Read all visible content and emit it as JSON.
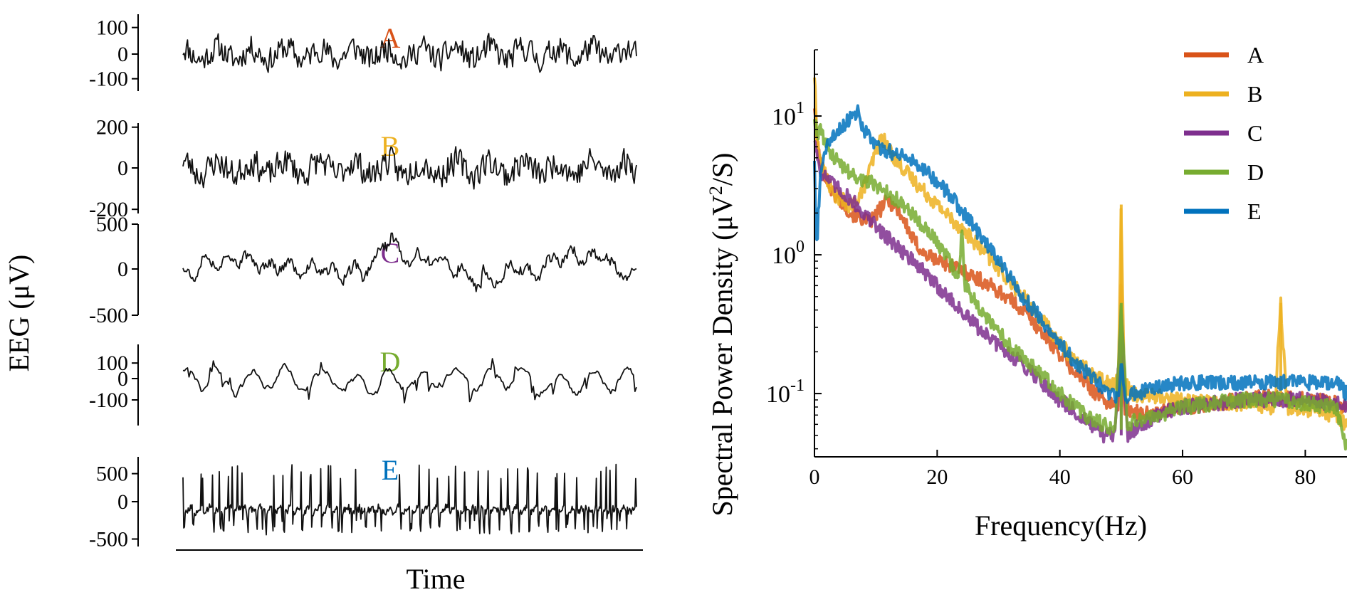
{
  "chart_data": [
    {
      "type": "line",
      "title": "",
      "xlabel": "Time",
      "ylabel": "EEG (μV)",
      "xlim": [
        0,
        4000
      ],
      "panels": [
        {
          "label": "A",
          "color": "#D95319",
          "ylim": [
            -150,
            150
          ],
          "yticks": [
            100,
            0,
            -100
          ],
          "yticklabels": [
            "100",
            "0",
            "-100"
          ],
          "seed": 11,
          "kind": "noise",
          "amp": 70,
          "n": 400
        },
        {
          "label": "B",
          "color": "#EDB120",
          "ylim": [
            -220,
            220
          ],
          "yticks": [
            200,
            0,
            -200
          ],
          "yticklabels": [
            "200",
            "0",
            "-200"
          ],
          "seed": 23,
          "kind": "noise",
          "amp": 95,
          "n": 400
        },
        {
          "label": "C",
          "color": "#7E2F8E",
          "ylim": [
            -500,
            500
          ],
          "yticks": [
            500,
            0,
            -500
          ],
          "yticklabels": [
            "500",
            "0",
            "-500"
          ],
          "seed": 37,
          "kind": "drift",
          "amp": 180,
          "n": 380
        },
        {
          "label": "D",
          "color": "#77AC30",
          "ylim": [
            -220,
            220
          ],
          "yticks": [
            100,
            0,
            -100
          ],
          "yticklabels": [
            "100",
            "0",
            "-100"
          ],
          "seed": 41,
          "kind": "slow",
          "amp": 110,
          "n": 300
        },
        {
          "label": "E",
          "color": "#0072BD",
          "ylim": [
            -600,
            800
          ],
          "yticks": [
            500,
            0,
            -500
          ],
          "yticklabels": [
            "500",
            "0",
            "-500"
          ],
          "seed": 53,
          "kind": "spike",
          "amp": 450,
          "n": 600
        }
      ]
    },
    {
      "type": "line",
      "title": "",
      "xlabel": "Frequency(Hz)",
      "ylabel": "Spectral Power Density (μV²/S)",
      "ylabel_main": "Spectral Power Density (μV",
      "ylabel_sup": "2",
      "ylabel_end": "/S)",
      "yscale": "log",
      "xlim": [
        0,
        86.8
      ],
      "ylim": [
        0.035,
        30
      ],
      "xticks": [
        0,
        20,
        40,
        60,
        80
      ],
      "xticklabels": [
        "0",
        "20",
        "40",
        "60",
        "80"
      ],
      "yticks": [
        10,
        1,
        0.1
      ],
      "yticklabels": [
        {
          "base": "10",
          "exp": "1"
        },
        {
          "base": "10",
          "exp": "0"
        },
        {
          "base": "10",
          "exp": "-1"
        }
      ],
      "legend_position": "top-right",
      "series": [
        {
          "name": "A",
          "color": "#D95319",
          "x": [
            0,
            0.5,
            1,
            3,
            6,
            9,
            12,
            14,
            16,
            18,
            22,
            26,
            30,
            34,
            38,
            42,
            46,
            48,
            49.5,
            50,
            50.5,
            52,
            55,
            60,
            65,
            70,
            75,
            80,
            85,
            86.8
          ],
          "y": [
            12,
            6,
            4.5,
            2.8,
            2.0,
            1.7,
            2.5,
            2.0,
            1.3,
            1.0,
            0.85,
            0.7,
            0.55,
            0.4,
            0.25,
            0.15,
            0.1,
            0.085,
            0.08,
            0.6,
            0.08,
            0.075,
            0.07,
            0.08,
            0.085,
            0.09,
            0.095,
            0.09,
            0.085,
            0.08
          ]
        },
        {
          "name": "B",
          "color": "#EDB120",
          "x": [
            0,
            0.4,
            1,
            3,
            6,
            8,
            10,
            11,
            13,
            16,
            20,
            25,
            30,
            34,
            38,
            42,
            46,
            48,
            49.5,
            50,
            50.5,
            52,
            56,
            60,
            65,
            70,
            75,
            76,
            77,
            80,
            85,
            86.8
          ],
          "y": [
            20,
            7,
            4.5,
            2.8,
            2.2,
            3.0,
            5.5,
            7.0,
            5.0,
            3.5,
            2.3,
            1.4,
            0.8,
            0.5,
            0.3,
            0.18,
            0.13,
            0.12,
            0.12,
            2.3,
            0.12,
            0.1,
            0.095,
            0.09,
            0.085,
            0.085,
            0.08,
            0.45,
            0.08,
            0.075,
            0.07,
            0.06
          ]
        },
        {
          "name": "C",
          "color": "#7E2F8E",
          "x": [
            0,
            0.5,
            1,
            3,
            6,
            10,
            15,
            20,
            25,
            30,
            35,
            40,
            44,
            47,
            49,
            50,
            51,
            53,
            56,
            60,
            65,
            70,
            76,
            80,
            85,
            86.8
          ],
          "y": [
            7,
            5,
            4.0,
            3.2,
            2.5,
            1.6,
            1.0,
            0.6,
            0.35,
            0.22,
            0.15,
            0.09,
            0.065,
            0.05,
            0.05,
            0.4,
            0.05,
            0.06,
            0.07,
            0.08,
            0.085,
            0.09,
            0.09,
            0.09,
            0.085,
            0.08
          ]
        },
        {
          "name": "D",
          "color": "#77AC30",
          "x": [
            0,
            0.5,
            1,
            2,
            4,
            7,
            10,
            14,
            18,
            22,
            23.5,
            24,
            24.5,
            28,
            32,
            36,
            40,
            44,
            47,
            49,
            50,
            51,
            53,
            56,
            60,
            65,
            70,
            76,
            80,
            85,
            86.8
          ],
          "y": [
            10,
            7,
            8,
            6,
            4.5,
            3.6,
            3.2,
            2.4,
            1.6,
            0.9,
            0.7,
            1.5,
            0.6,
            0.35,
            0.22,
            0.15,
            0.1,
            0.07,
            0.06,
            0.055,
            0.45,
            0.06,
            0.065,
            0.07,
            0.08,
            0.085,
            0.09,
            0.09,
            0.085,
            0.08,
            0.04
          ]
        },
        {
          "name": "E",
          "color": "#0072BD",
          "x": [
            0,
            0.3,
            1,
            2,
            4,
            6,
            7,
            8,
            10,
            14,
            18,
            22,
            26,
            30,
            34,
            38,
            42,
            46,
            48,
            49.5,
            50,
            50.5,
            52,
            56,
            60,
            65,
            70,
            75,
            80,
            85,
            86.8
          ],
          "y": [
            5,
            1.0,
            4,
            6,
            8,
            10,
            11,
            8,
            6.0,
            5.3,
            4.2,
            2.7,
            1.6,
            0.9,
            0.5,
            0.3,
            0.18,
            0.12,
            0.1,
            0.095,
            0.17,
            0.095,
            0.1,
            0.11,
            0.12,
            0.12,
            0.12,
            0.12,
            0.12,
            0.12,
            0.1
          ]
        }
      ]
    }
  ]
}
